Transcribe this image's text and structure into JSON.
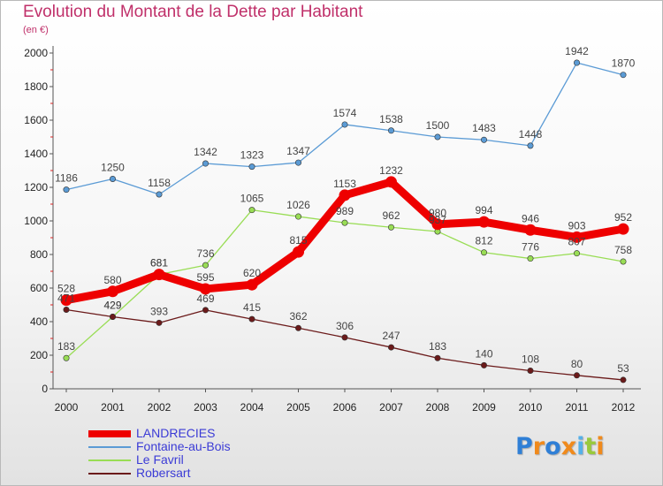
{
  "chart_data": {
    "type": "line",
    "title": "Evolution du Montant de la Dette par Habitant",
    "subtitle": "(en €)",
    "x": [
      "2000",
      "2001",
      "2002",
      "2003",
      "2004",
      "2005",
      "2006",
      "2007",
      "2008",
      "2009",
      "2010",
      "2011",
      "2012"
    ],
    "ylim": [
      0,
      2000
    ],
    "yticks": [
      0,
      200,
      400,
      600,
      800,
      1000,
      1200,
      1400,
      1600,
      1800,
      2000
    ],
    "grid": false,
    "legend": "bottom-left",
    "series": [
      {
        "name": "LANDRECIES",
        "color": "#ee0000",
        "values": [
          528,
          580,
          681,
          595,
          620,
          815,
          1153,
          1232,
          980,
          994,
          946,
          903,
          952
        ]
      },
      {
        "name": "Fontaine-au-Bois",
        "color": "#5b9bd5",
        "values": [
          1186,
          1250,
          1158,
          1342,
          1323,
          1347,
          1574,
          1538,
          1500,
          1483,
          1448,
          1942,
          1870
        ]
      },
      {
        "name": "Le Favril",
        "color": "#99dd55",
        "values": [
          183,
          429,
          681,
          736,
          1065,
          1026,
          989,
          962,
          937,
          812,
          776,
          807,
          758
        ]
      },
      {
        "name": "Robersart",
        "color": "#6b1a1a",
        "values": [
          471,
          429,
          393,
          469,
          415,
          362,
          306,
          247,
          183,
          140,
          108,
          80,
          53
        ]
      }
    ]
  },
  "logo": {
    "letters": [
      {
        "ch": "P",
        "color": "#2f7fd6"
      },
      {
        "ch": "r",
        "color": "#f08a1c"
      },
      {
        "ch": "o",
        "color": "#2f7fd6"
      },
      {
        "ch": "x",
        "color": "#f08a1c"
      },
      {
        "ch": "i",
        "color": "#55b0e8"
      },
      {
        "ch": "t",
        "color": "#99c93c"
      },
      {
        "ch": "i",
        "color": "#f08a1c"
      }
    ]
  }
}
